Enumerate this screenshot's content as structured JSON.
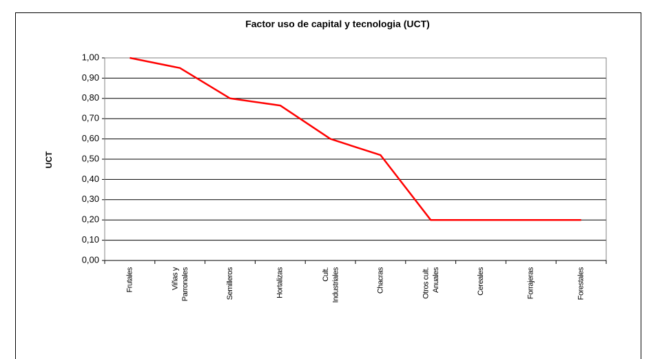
{
  "chart_data": {
    "type": "line",
    "title": "Factor uso de capital y tecnologia (UCT)",
    "y_label": "UCT",
    "categories": [
      "Frutales",
      "Viñas y Parronales",
      "Semilleros",
      "Hortalizas",
      "Cult. Industriales",
      "Chacras",
      "Otros cult. Anuales",
      "Cereales",
      "Forrajeras",
      "Forestales"
    ],
    "values": [
      1.0,
      0.95,
      0.8,
      0.765,
      0.6,
      0.52,
      0.2,
      0.2,
      0.2,
      0.2
    ],
    "color": "#ff0000",
    "ylim": [
      0,
      1
    ],
    "yticks": [
      {
        "value": 0,
        "label": "0,00"
      },
      {
        "value": 0.1,
        "label": "0,10"
      },
      {
        "value": 0.2,
        "label": "0,20"
      },
      {
        "value": 0.3,
        "label": "0,30"
      },
      {
        "value": 0.4,
        "label": "0,40"
      },
      {
        "value": 0.5,
        "label": "0,50"
      },
      {
        "value": 0.6,
        "label": "0,60"
      },
      {
        "value": 0.7,
        "label": "0,70"
      },
      {
        "value": 0.8,
        "label": "0,80"
      },
      {
        "value": 0.9,
        "label": "0,90"
      },
      {
        "value": 1,
        "label": "1,00"
      }
    ],
    "grid": true
  }
}
